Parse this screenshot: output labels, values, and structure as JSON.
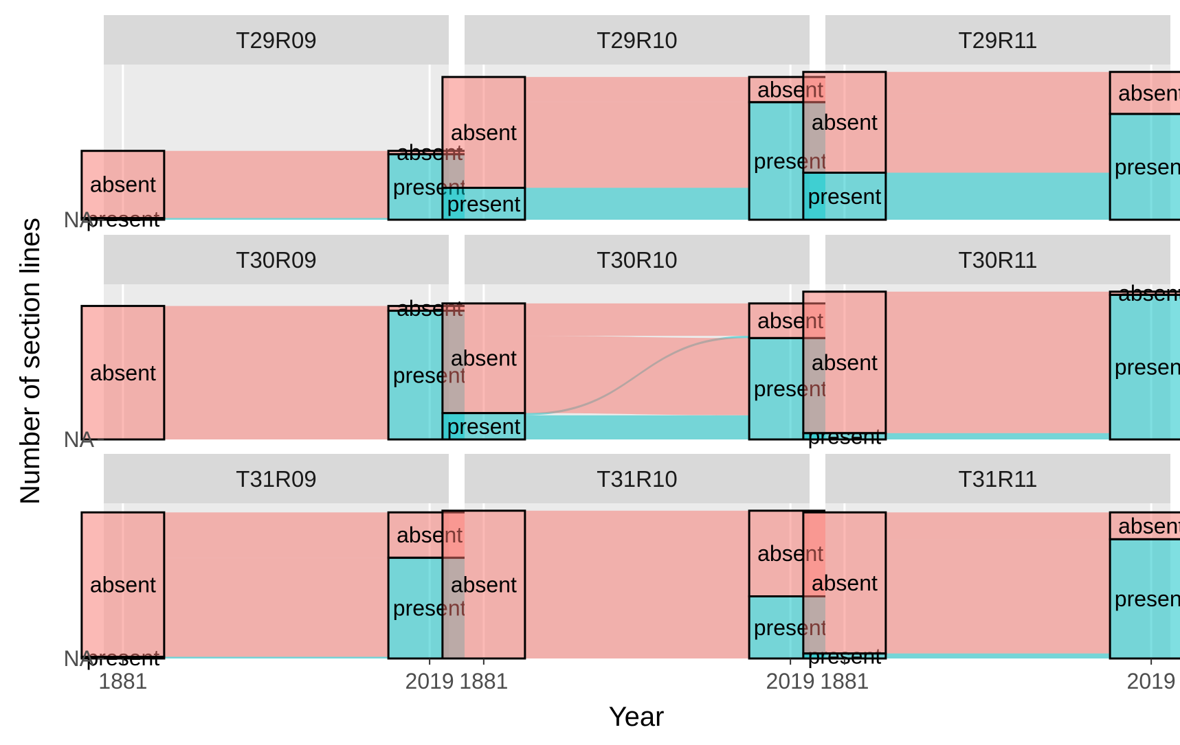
{
  "colors": {
    "absent": "#F8766D",
    "present": "#00BFC4",
    "panel_bg": "#EBEBEB",
    "strip_bg": "#D9D9D9",
    "grid": "#FFFFFF",
    "stratum_border": "#000000"
  },
  "chart_data": {
    "type": "alluvial",
    "xlabel": "Year",
    "ylabel": "Number of section lines",
    "x_categories": [
      "1881",
      "2019"
    ],
    "y_tick_labels": [
      "NA"
    ],
    "facet_layout": "3x3 grid, free y scales per row",
    "grid": true,
    "legend": "none",
    "categories": [
      "absent",
      "present"
    ],
    "panels": [
      {
        "name": "T29R09",
        "y1881": {
          "absent": 20,
          "present": 0.5
        },
        "y2019": {
          "absent": 1,
          "present": 19.5
        },
        "flows": [
          {
            "from": "absent",
            "to": "absent",
            "value": 1
          },
          {
            "from": "absent",
            "to": "present",
            "value": 19
          },
          {
            "from": "present",
            "to": "present",
            "value": 0.5
          }
        ]
      },
      {
        "name": "T29R10",
        "y1881": {
          "absent": 33,
          "present": 9.5
        },
        "y2019": {
          "absent": 7.5,
          "present": 35
        },
        "flows": [
          {
            "from": "absent",
            "to": "absent",
            "value": 7.5
          },
          {
            "from": "absent",
            "to": "present",
            "value": 25.5
          },
          {
            "from": "present",
            "to": "present",
            "value": 9.5
          }
        ]
      },
      {
        "name": "T29R11",
        "y1881": {
          "absent": 30,
          "present": 14
        },
        "y2019": {
          "absent": 12.5,
          "present": 31.5
        },
        "flows": [
          {
            "from": "absent",
            "to": "absent",
            "value": 12.5
          },
          {
            "from": "absent",
            "to": "present",
            "value": 17.5
          },
          {
            "from": "present",
            "to": "present",
            "value": 14
          }
        ]
      },
      {
        "name": "T30R09",
        "y1881": {
          "absent": 42,
          "present": 0
        },
        "y2019": {
          "absent": 1.5,
          "present": 40.5
        },
        "flows": [
          {
            "from": "absent",
            "to": "absent",
            "value": 1.5
          },
          {
            "from": "absent",
            "to": "present",
            "value": 40.5
          }
        ]
      },
      {
        "name": "T30R10",
        "y1881": {
          "absent": 34.5,
          "present": 8.3
        },
        "y2019": {
          "absent": 10.9,
          "present": 31.9
        },
        "flows": [
          {
            "from": "absent",
            "to": "absent",
            "value": 10.2
          },
          {
            "from": "absent",
            "to": "present",
            "value": 24.3
          },
          {
            "from": "present",
            "to": "absent",
            "value": 0.7
          },
          {
            "from": "present",
            "to": "present",
            "value": 7.6
          }
        ]
      },
      {
        "name": "T30R11",
        "y1881": {
          "absent": 44.5,
          "present": 2
        },
        "y2019": {
          "absent": 1,
          "present": 45.5
        },
        "flows": [
          {
            "from": "absent",
            "to": "absent",
            "value": 1
          },
          {
            "from": "absent",
            "to": "present",
            "value": 43.5
          },
          {
            "from": "present",
            "to": "present",
            "value": 2
          }
        ]
      },
      {
        "name": "T31R09",
        "y1881": {
          "absent": 43,
          "present": 0.5
        },
        "y2019": {
          "absent": 13.5,
          "present": 30
        },
        "flows": [
          {
            "from": "absent",
            "to": "absent",
            "value": 13.5
          },
          {
            "from": "absent",
            "to": "present",
            "value": 29.5
          },
          {
            "from": "present",
            "to": "present",
            "value": 0.5
          }
        ]
      },
      {
        "name": "T31R10",
        "y1881": {
          "absent": 44,
          "present": 0
        },
        "y2019": {
          "absent": 25.5,
          "present": 18.5
        },
        "flows": [
          {
            "from": "absent",
            "to": "absent",
            "value": 25.5
          },
          {
            "from": "absent",
            "to": "present",
            "value": 18.5
          }
        ]
      },
      {
        "name": "T31R11",
        "y1881": {
          "absent": 42,
          "present": 1.5
        },
        "y2019": {
          "absent": 8,
          "present": 35.5
        },
        "flows": [
          {
            "from": "absent",
            "to": "absent",
            "value": 8
          },
          {
            "from": "absent",
            "to": "present",
            "value": 34
          },
          {
            "from": "present",
            "to": "present",
            "value": 1.5
          }
        ]
      }
    ]
  }
}
